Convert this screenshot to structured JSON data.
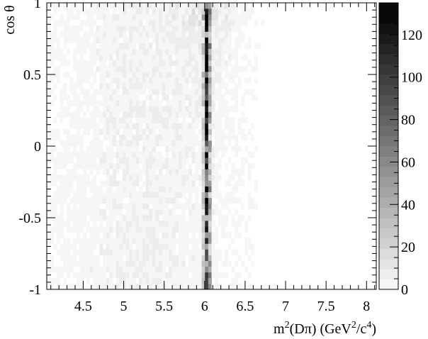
{
  "chart_data": {
    "type": "heatmap",
    "title": "",
    "xlabel_main": "m",
    "xlabel_sup": "2",
    "xlabel_mid": "(Dπ) (GeV",
    "xlabel_sup2": "2",
    "xlabel_mid2": "/c",
    "xlabel_sup3": "4",
    "xlabel_end": ")",
    "ylabel": "cos θ",
    "xlim": [
      4.05,
      8.12
    ],
    "ylim": [
      -1,
      1
    ],
    "x_ticks": [
      4.5,
      5,
      5.5,
      6,
      6.5,
      7,
      7.5,
      8
    ],
    "x_tick_labels": [
      "4.5",
      "5",
      "5.5",
      "6",
      "6.5",
      "7",
      "7.5",
      "8"
    ],
    "y_ticks": [
      -1,
      -0.5,
      0,
      0.5,
      1
    ],
    "y_tick_labels": [
      "-1",
      "-0.5",
      "0",
      "0.5",
      "1"
    ],
    "colorbar": {
      "min": 0,
      "max": 135,
      "ticks": [
        0,
        20,
        40,
        60,
        80,
        100,
        120
      ],
      "tick_labels": [
        "0",
        "20",
        "40",
        "60",
        "80",
        "100",
        "120"
      ],
      "low_color": "#ffffff",
      "high_color": "#000000"
    },
    "bins": {
      "nx": 100,
      "ny": 50
    },
    "features": {
      "peak_center_x": 6.03,
      "peak_width_x": 0.035,
      "peak_max": 135,
      "band_upper_edge_note": "enhanced density near cos θ = 1 around the peak"
    }
  }
}
